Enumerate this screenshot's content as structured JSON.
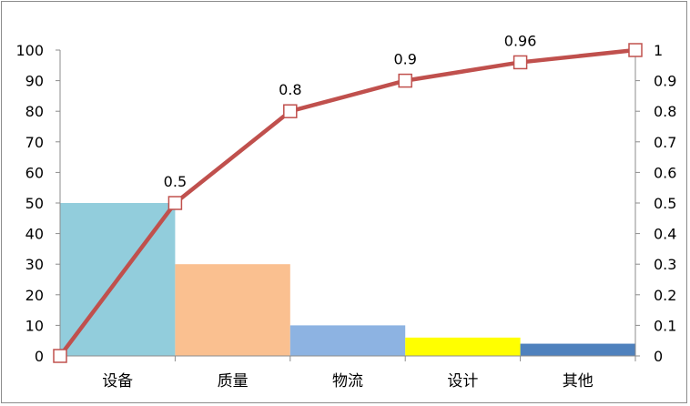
{
  "chart_data": {
    "type": "pareto",
    "categories": [
      "设备",
      "质量",
      "物流",
      "设计",
      "其他"
    ],
    "bar_values": [
      50,
      30,
      10,
      6,
      4
    ],
    "bar_colors": [
      "#92cddc",
      "#fac090",
      "#8db3e2",
      "#ffff00",
      "#4f81bd"
    ],
    "line": {
      "x": [
        0,
        1,
        2,
        3,
        4,
        5
      ],
      "values": [
        0,
        0.5,
        0.8,
        0.9,
        0.96,
        1
      ],
      "data_labels": [
        "",
        "0.5",
        "0.8",
        "0.9",
        "0.96",
        ""
      ],
      "color": "#c0504d"
    },
    "y_left": {
      "min": 0,
      "max": 100,
      "step": 10,
      "ticks": [
        "0",
        "10",
        "20",
        "30",
        "40",
        "50",
        "60",
        "70",
        "80",
        "90",
        "100"
      ]
    },
    "y_right": {
      "min": 0,
      "max": 1,
      "step": 0.1,
      "ticks": [
        "0",
        "0.1",
        "0.2",
        "0.3",
        "0.4",
        "0.5",
        "0.6",
        "0.7",
        "0.8",
        "0.9",
        "1"
      ]
    },
    "grid": false,
    "legend": "none"
  }
}
